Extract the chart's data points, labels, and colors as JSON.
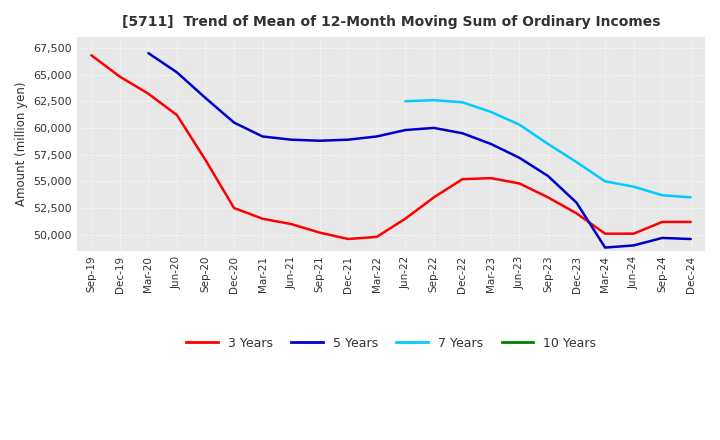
{
  "title": "[5711]  Trend of Mean of 12-Month Moving Sum of Ordinary Incomes",
  "ylabel": "Amount (million yen)",
  "ylim": [
    48500,
    68500
  ],
  "yticks": [
    50000,
    52500,
    55000,
    57500,
    60000,
    62500,
    65000,
    67500
  ],
  "background_color": "#ffffff",
  "plot_bg_color": "#e8e8e8",
  "grid_color": "#ffffff",
  "x_labels": [
    "Sep-19",
    "Dec-19",
    "Mar-20",
    "Jun-20",
    "Sep-20",
    "Dec-20",
    "Mar-21",
    "Jun-21",
    "Sep-21",
    "Dec-21",
    "Mar-22",
    "Jun-22",
    "Sep-22",
    "Dec-22",
    "Mar-23",
    "Jun-23",
    "Sep-23",
    "Dec-23",
    "Mar-24",
    "Jun-24",
    "Sep-24",
    "Dec-24"
  ],
  "series": {
    "3 Years": {
      "color": "#ff0000",
      "values": [
        66800,
        64800,
        63200,
        61200,
        57000,
        52500,
        51500,
        51000,
        50200,
        49600,
        49800,
        51500,
        53500,
        55200,
        55300,
        54800,
        53500,
        52000,
        50100,
        50100,
        51200,
        51200
      ]
    },
    "5 Years": {
      "color": "#0000cc",
      "values": [
        null,
        null,
        67000,
        65200,
        62800,
        60500,
        59200,
        58900,
        58800,
        58900,
        59200,
        59800,
        60000,
        59500,
        58500,
        57200,
        55500,
        53000,
        48800,
        49000,
        49700,
        49600
      ]
    },
    "7 Years": {
      "color": "#00ccff",
      "values": [
        null,
        null,
        null,
        null,
        null,
        null,
        null,
        null,
        null,
        null,
        null,
        62500,
        62600,
        62400,
        61500,
        60300,
        58500,
        56800,
        55000,
        54500,
        53700,
        53500
      ]
    },
    "10 Years": {
      "color": "#008000",
      "values": [
        null,
        null,
        null,
        null,
        null,
        null,
        null,
        null,
        null,
        null,
        null,
        null,
        null,
        null,
        null,
        null,
        null,
        null,
        null,
        null,
        null,
        null
      ]
    }
  },
  "legend_labels": [
    "3 Years",
    "5 Years",
    "7 Years",
    "10 Years"
  ],
  "legend_colors": [
    "#ff0000",
    "#0000cc",
    "#00ccff",
    "#008000"
  ]
}
